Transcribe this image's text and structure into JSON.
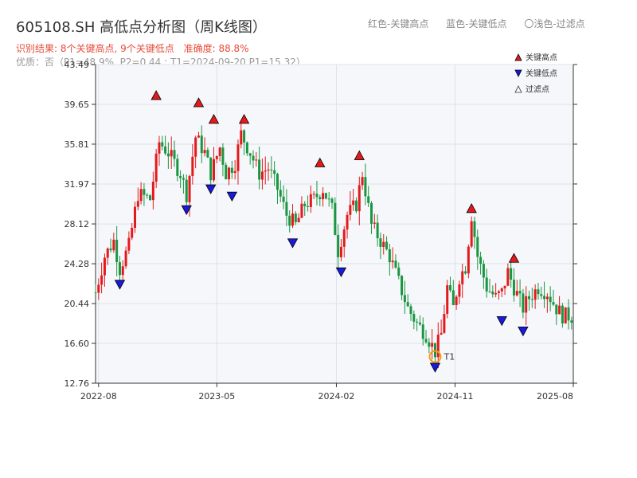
{
  "header": {
    "title": "605108.SH 高低点分析图（周K线图）",
    "legend_text": [
      "红色-关键高点",
      "蓝色-关键低点",
      "〇浅色-过滤点"
    ],
    "result_text": "识别结果: 8个关键高点, 9个关键低点",
    "accuracy_text": "准确度: 88.8%",
    "quality_text": "优质：否（P1=48.9%, P2=0.44 ; T1=2024-09-20 P1=15.32）"
  },
  "colors": {
    "up": "#e31a1c",
    "down": "#1a9641",
    "high_marker": "#e31a1c",
    "low_marker": "#1a1adb",
    "t1_ring": "#f39c12",
    "grid": "#dde3ea",
    "plot_bg": "#f5f7fa"
  },
  "chart_data": {
    "type": "candlestick",
    "ylim": [
      12.76,
      43.49
    ],
    "y_ticks": [
      "12.76",
      "16.60",
      "20.44",
      "24.28",
      "28.12",
      "31.97",
      "35.81",
      "39.65",
      "43.49"
    ],
    "x_ticks": [
      "2022-08",
      "2023-05",
      "2024-02",
      "2024-11",
      "2025-08"
    ],
    "x_tick_dates": [
      "2022-08-01",
      "2023-05-01",
      "2024-02-01",
      "2024-11-01",
      "2025-08-01"
    ],
    "x_range": [
      "2022-07-25",
      "2025-08-01"
    ],
    "grid": true,
    "legend": {
      "position": "top-right",
      "entries": [
        {
          "label": "关键高点",
          "marker": "triangle-up",
          "color": "#e31a1c"
        },
        {
          "label": "关键低点",
          "marker": "triangle-down",
          "color": "#1a1adb"
        },
        {
          "label": "过滤点",
          "marker": "triangle-up-hollow",
          "color": "#333333"
        }
      ]
    },
    "weekly_close_path": [
      [
        "2022-07-25",
        21.5
      ],
      [
        "2022-08-15",
        25.0
      ],
      [
        "2022-09-05",
        26.5
      ],
      [
        "2022-09-19",
        23.8
      ],
      [
        "2022-10-10",
        26.0
      ],
      [
        "2022-10-31",
        31.0
      ],
      [
        "2022-11-28",
        30.5
      ],
      [
        "2022-12-19",
        36.0
      ],
      [
        "2023-01-09",
        35.0
      ],
      [
        "2023-02-06",
        33.0
      ],
      [
        "2023-02-20",
        31.0
      ],
      [
        "2023-03-13",
        36.5
      ],
      [
        "2023-04-03",
        35.0
      ],
      [
        "2023-04-17",
        33.0
      ],
      [
        "2023-05-08",
        35.5
      ],
      [
        "2023-05-22",
        33.0
      ],
      [
        "2023-06-12",
        34.0
      ],
      [
        "2023-06-26",
        36.8
      ],
      [
        "2023-07-17",
        35.0
      ],
      [
        "2023-08-07",
        33.0
      ],
      [
        "2023-08-28",
        33.5
      ],
      [
        "2023-09-18",
        31.5
      ],
      [
        "2023-10-09",
        29.0
      ],
      [
        "2023-10-30",
        28.0
      ],
      [
        "2023-11-20",
        30.0
      ],
      [
        "2023-12-11",
        30.5
      ],
      [
        "2024-01-01",
        31.5
      ],
      [
        "2024-01-22",
        29.5
      ],
      [
        "2024-02-05",
        25.5
      ],
      [
        "2024-02-26",
        29.0
      ],
      [
        "2024-03-18",
        30.0
      ],
      [
        "2024-04-01",
        33.0
      ],
      [
        "2024-04-22",
        28.0
      ],
      [
        "2024-05-13",
        26.5
      ],
      [
        "2024-06-03",
        25.0
      ],
      [
        "2024-06-24",
        22.5
      ],
      [
        "2024-07-15",
        20.0
      ],
      [
        "2024-08-05",
        18.5
      ],
      [
        "2024-08-26",
        17.5
      ],
      [
        "2024-09-16",
        15.8
      ],
      [
        "2024-09-30",
        17.5
      ],
      [
        "2024-10-14",
        22.0
      ],
      [
        "2024-10-28",
        20.0
      ],
      [
        "2024-11-11",
        23.0
      ],
      [
        "2024-11-25",
        24.0
      ],
      [
        "2024-12-09",
        29.0
      ],
      [
        "2024-12-23",
        25.0
      ],
      [
        "2025-01-13",
        22.0
      ],
      [
        "2025-02-03",
        21.0
      ],
      [
        "2025-02-17",
        21.5
      ],
      [
        "2025-03-03",
        23.5
      ],
      [
        "2025-03-17",
        22.0
      ],
      [
        "2025-04-07",
        20.0
      ],
      [
        "2025-04-21",
        21.0
      ],
      [
        "2025-05-12",
        22.0
      ],
      [
        "2025-06-02",
        21.5
      ],
      [
        "2025-06-23",
        20.0
      ],
      [
        "2025-07-07",
        19.3
      ],
      [
        "2025-08-01",
        19.2
      ]
    ],
    "key_highs": [
      {
        "date": "2022-12-12",
        "value": 40.5
      },
      {
        "date": "2023-03-20",
        "value": 39.8
      },
      {
        "date": "2023-04-24",
        "value": 38.2
      },
      {
        "date": "2023-07-03",
        "value": 38.2
      },
      {
        "date": "2023-12-25",
        "value": 34.0
      },
      {
        "date": "2024-03-25",
        "value": 34.7
      },
      {
        "date": "2024-12-09",
        "value": 29.6
      },
      {
        "date": "2025-03-17",
        "value": 24.8
      }
    ],
    "key_lows": [
      {
        "date": "2022-09-19",
        "value": 22.3
      },
      {
        "date": "2023-02-20",
        "value": 29.5
      },
      {
        "date": "2023-04-17",
        "value": 31.5
      },
      {
        "date": "2023-06-05",
        "value": 30.8
      },
      {
        "date": "2023-10-23",
        "value": 26.3
      },
      {
        "date": "2024-02-12",
        "value": 23.5
      },
      {
        "date": "2024-09-16",
        "value": 14.3
      },
      {
        "date": "2025-02-17",
        "value": 18.8
      },
      {
        "date": "2025-04-07",
        "value": 17.8
      }
    ],
    "t1": {
      "label": "T1",
      "date": "2024-09-16",
      "value": 15.32
    }
  }
}
